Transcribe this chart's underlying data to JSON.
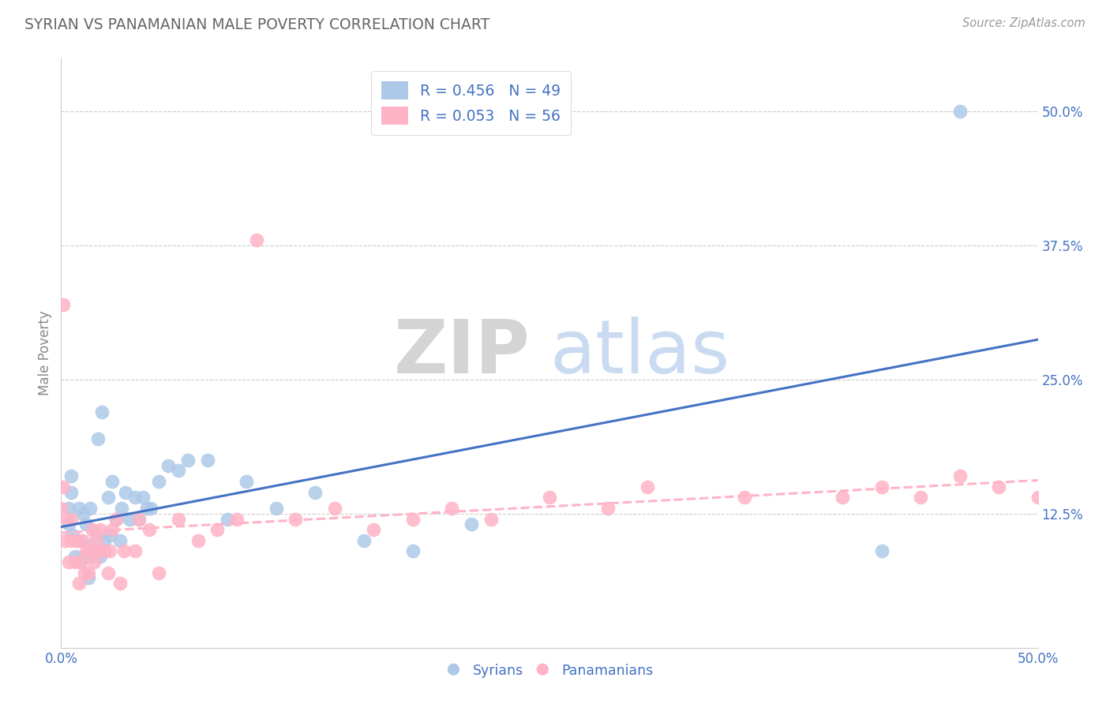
{
  "title": "SYRIAN VS PANAMANIAN MALE POVERTY CORRELATION CHART",
  "source": "Source: ZipAtlas.com",
  "ylabel": "Male Poverty",
  "xlim": [
    0.0,
    0.5
  ],
  "ylim": [
    0.0,
    0.55
  ],
  "xticks": [
    0.0,
    0.05,
    0.1,
    0.15,
    0.2,
    0.25,
    0.3,
    0.35,
    0.4,
    0.45,
    0.5
  ],
  "xticklabels": [
    "0.0%",
    "",
    "",
    "",
    "",
    "",
    "",
    "",
    "",
    "",
    "50.0%"
  ],
  "ytick_positions": [
    0.0,
    0.125,
    0.25,
    0.375,
    0.5
  ],
  "yticklabels": [
    "",
    "12.5%",
    "25.0%",
    "37.5%",
    "50.0%"
  ],
  "watermark_zip": "ZIP",
  "watermark_atlas": "atlas",
  "syrian_color": "#aec9e8",
  "panamanian_color": "#ffb3c6",
  "syrian_line_color": "#4472c4",
  "panamanian_line_color": "#ffb3c6",
  "legend_text_color": "#4472c4",
  "title_color": "#666666",
  "grid_color": "#cccccc",
  "R_syrian": 0.456,
  "N_syrian": 49,
  "R_panamanian": 0.053,
  "N_panamanian": 56,
  "syrian_x": [
    0.004,
    0.004,
    0.005,
    0.005,
    0.006,
    0.007,
    0.008,
    0.009,
    0.01,
    0.01,
    0.011,
    0.012,
    0.013,
    0.014,
    0.015,
    0.015,
    0.016,
    0.018,
    0.019,
    0.02,
    0.021,
    0.022,
    0.024,
    0.025,
    0.026,
    0.028,
    0.03,
    0.031,
    0.033,
    0.035,
    0.038,
    0.04,
    0.042,
    0.044,
    0.046,
    0.05,
    0.055,
    0.06,
    0.065,
    0.075,
    0.085,
    0.095,
    0.11,
    0.13,
    0.155,
    0.18,
    0.21,
    0.42,
    0.46
  ],
  "syrian_y": [
    0.115,
    0.13,
    0.145,
    0.16,
    0.105,
    0.085,
    0.1,
    0.13,
    0.08,
    0.1,
    0.125,
    0.085,
    0.115,
    0.065,
    0.095,
    0.13,
    0.085,
    0.105,
    0.195,
    0.085,
    0.22,
    0.1,
    0.14,
    0.105,
    0.155,
    0.12,
    0.1,
    0.13,
    0.145,
    0.12,
    0.14,
    0.12,
    0.14,
    0.13,
    0.13,
    0.155,
    0.17,
    0.165,
    0.175,
    0.175,
    0.12,
    0.155,
    0.13,
    0.145,
    0.1,
    0.09,
    0.115,
    0.09,
    0.5
  ],
  "panamanian_x": [
    0.0,
    0.001,
    0.001,
    0.002,
    0.003,
    0.004,
    0.005,
    0.005,
    0.007,
    0.008,
    0.009,
    0.01,
    0.011,
    0.012,
    0.013,
    0.014,
    0.015,
    0.016,
    0.017,
    0.018,
    0.019,
    0.02,
    0.022,
    0.024,
    0.025,
    0.026,
    0.028,
    0.03,
    0.032,
    0.038,
    0.04,
    0.045,
    0.05,
    0.06,
    0.07,
    0.08,
    0.09,
    0.1,
    0.12,
    0.14,
    0.16,
    0.18,
    0.2,
    0.22,
    0.25,
    0.28,
    0.3,
    0.35,
    0.4,
    0.42,
    0.44,
    0.46,
    0.48,
    0.5,
    0.52,
    0.55
  ],
  "panamanian_y": [
    0.13,
    0.15,
    0.32,
    0.1,
    0.12,
    0.08,
    0.1,
    0.12,
    0.08,
    0.1,
    0.06,
    0.08,
    0.1,
    0.07,
    0.09,
    0.07,
    0.09,
    0.11,
    0.08,
    0.1,
    0.09,
    0.11,
    0.09,
    0.07,
    0.09,
    0.11,
    0.12,
    0.06,
    0.09,
    0.09,
    0.12,
    0.11,
    0.07,
    0.12,
    0.1,
    0.11,
    0.12,
    0.38,
    0.12,
    0.13,
    0.11,
    0.12,
    0.13,
    0.12,
    0.14,
    0.13,
    0.15,
    0.14,
    0.14,
    0.15,
    0.14,
    0.16,
    0.15,
    0.14,
    0.16,
    0.15
  ]
}
